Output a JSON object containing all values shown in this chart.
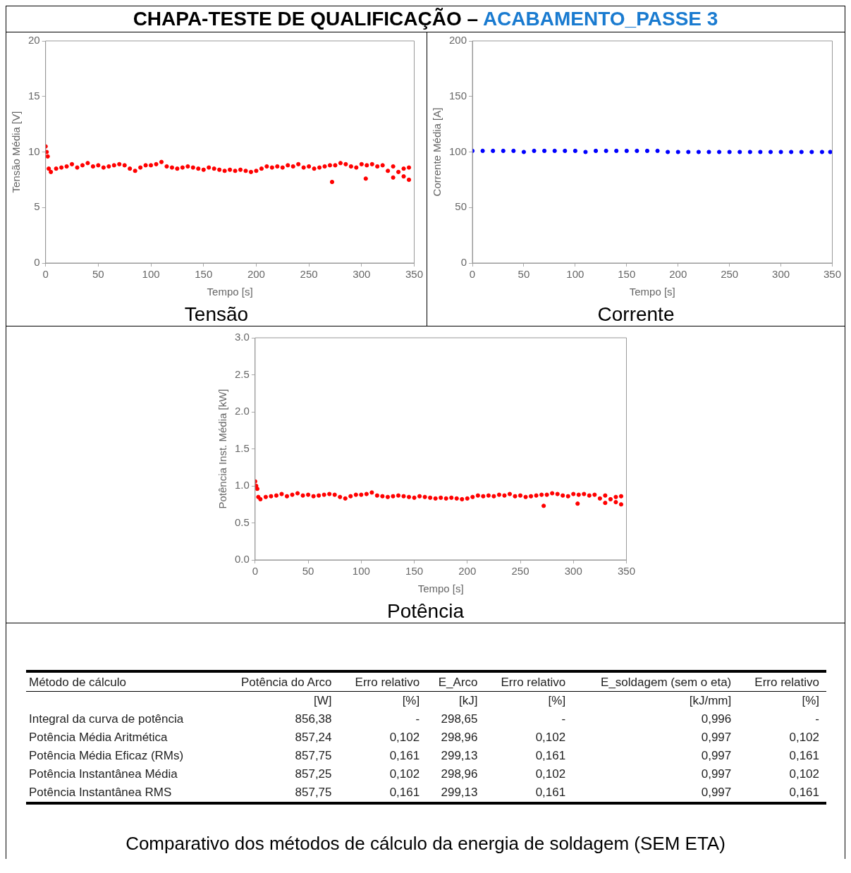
{
  "chart_data": [
    {
      "type": "scatter",
      "title": "Tensão",
      "xlabel": "Tempo [s]",
      "ylabel": "Tensão Média [V]",
      "annotations": [
        "CHAPA-TESTE DE QUALIFICAÇÃO – ",
        "ACABAMENTO_PASSE 3"
      ],
      "marker": "circle",
      "grid": false,
      "legend": false,
      "xlim": [
        0,
        350
      ],
      "xticks": [
        0,
        50,
        100,
        150,
        200,
        250,
        300,
        350
      ],
      "ylim": [
        0,
        20
      ],
      "yticks": [
        0,
        5,
        10,
        15,
        20
      ],
      "series": [
        {
          "color": "#ff0000",
          "x": [
            0,
            1,
            2,
            3,
            5,
            10,
            15,
            20,
            25,
            30,
            35,
            40,
            45,
            50,
            55,
            60,
            65,
            70,
            75,
            80,
            85,
            90,
            95,
            100,
            105,
            110,
            115,
            120,
            125,
            130,
            135,
            140,
            145,
            150,
            155,
            160,
            165,
            170,
            175,
            180,
            185,
            190,
            195,
            200,
            205,
            210,
            215,
            220,
            225,
            230,
            235,
            240,
            245,
            250,
            255,
            260,
            265,
            270,
            275,
            280,
            285,
            290,
            295,
            300,
            305,
            310,
            315,
            320,
            325,
            330,
            335,
            340,
            345,
            272,
            304,
            330,
            340,
            345
          ],
          "values": [
            10.5,
            10.0,
            9.6,
            8.5,
            8.2,
            8.5,
            8.6,
            8.7,
            8.9,
            8.6,
            8.8,
            9.0,
            8.7,
            8.8,
            8.6,
            8.7,
            8.8,
            8.9,
            8.8,
            8.5,
            8.3,
            8.6,
            8.8,
            8.8,
            8.9,
            9.1,
            8.7,
            8.6,
            8.5,
            8.6,
            8.7,
            8.6,
            8.5,
            8.4,
            8.6,
            8.5,
            8.4,
            8.3,
            8.4,
            8.3,
            8.4,
            8.3,
            8.2,
            8.3,
            8.5,
            8.7,
            8.6,
            8.7,
            8.6,
            8.8,
            8.7,
            8.9,
            8.6,
            8.7,
            8.5,
            8.6,
            8.7,
            8.8,
            8.8,
            9.0,
            8.9,
            8.7,
            8.6,
            8.9,
            8.8,
            8.9,
            8.7,
            8.8,
            8.3,
            8.7,
            8.2,
            8.5,
            8.6,
            7.3,
            7.6,
            7.7,
            7.8,
            7.5
          ]
        }
      ]
    },
    {
      "type": "scatter",
      "title": "Corrente",
      "xlabel": "Tempo [s]",
      "ylabel": "Corrente Média [A]",
      "marker": "circle",
      "grid": false,
      "legend": false,
      "xlim": [
        0,
        350
      ],
      "xticks": [
        0,
        50,
        100,
        150,
        200,
        250,
        300,
        350
      ],
      "ylim": [
        0,
        200
      ],
      "yticks": [
        0,
        50,
        100,
        150,
        200
      ],
      "series": [
        {
          "color": "#0000ff",
          "x": [
            0,
            10,
            20,
            30,
            40,
            50,
            60,
            70,
            80,
            90,
            100,
            110,
            120,
            130,
            140,
            150,
            160,
            170,
            180,
            190,
            200,
            210,
            220,
            230,
            240,
            250,
            260,
            270,
            280,
            290,
            300,
            310,
            320,
            330,
            340,
            348
          ],
          "values": [
            101,
            101,
            101,
            101,
            101,
            100,
            101,
            101,
            101,
            101,
            101,
            100,
            101,
            101,
            101,
            101,
            101,
            101,
            101,
            100,
            100,
            100,
            100,
            100,
            100,
            100,
            100,
            100,
            100,
            100,
            100,
            100,
            100,
            100,
            100,
            100
          ]
        }
      ]
    },
    {
      "type": "scatter",
      "title": "Potência",
      "xlabel": "Tempo [s]",
      "ylabel": "Potência Inst. Média [kW]",
      "marker": "circle",
      "grid": false,
      "legend": false,
      "xlim": [
        0,
        350
      ],
      "xticks": [
        0,
        50,
        100,
        150,
        200,
        250,
        300,
        350
      ],
      "ylim": [
        0,
        3
      ],
      "yticks": [
        {
          "value": 0,
          "label": "0.0"
        },
        {
          "value": 0.5,
          "label": "0.5"
        },
        {
          "value": 1,
          "label": "1.0"
        },
        {
          "value": 1.5,
          "label": "1.5"
        },
        {
          "value": 2,
          "label": "2.0"
        },
        {
          "value": 2.5,
          "label": "2.5"
        },
        {
          "value": 3,
          "label": "3.0"
        }
      ],
      "series": [
        {
          "color": "#ff0000",
          "x": [
            0,
            1,
            2,
            3,
            5,
            10,
            15,
            20,
            25,
            30,
            35,
            40,
            45,
            50,
            55,
            60,
            65,
            70,
            75,
            80,
            85,
            90,
            95,
            100,
            105,
            110,
            115,
            120,
            125,
            130,
            135,
            140,
            145,
            150,
            155,
            160,
            165,
            170,
            175,
            180,
            185,
            190,
            195,
            200,
            205,
            210,
            215,
            220,
            225,
            230,
            235,
            240,
            245,
            250,
            255,
            260,
            265,
            270,
            275,
            280,
            285,
            290,
            295,
            300,
            305,
            310,
            315,
            320,
            325,
            330,
            335,
            340,
            345,
            272,
            304,
            330,
            340,
            345
          ],
          "values": [
            1.06,
            1.0,
            0.96,
            0.85,
            0.82,
            0.85,
            0.86,
            0.87,
            0.89,
            0.86,
            0.88,
            0.9,
            0.87,
            0.88,
            0.86,
            0.87,
            0.88,
            0.89,
            0.88,
            0.85,
            0.83,
            0.86,
            0.88,
            0.88,
            0.89,
            0.91,
            0.87,
            0.86,
            0.85,
            0.86,
            0.87,
            0.86,
            0.85,
            0.84,
            0.86,
            0.85,
            0.84,
            0.83,
            0.84,
            0.83,
            0.84,
            0.83,
            0.82,
            0.83,
            0.85,
            0.87,
            0.86,
            0.87,
            0.86,
            0.88,
            0.87,
            0.89,
            0.86,
            0.87,
            0.85,
            0.86,
            0.87,
            0.88,
            0.88,
            0.9,
            0.89,
            0.87,
            0.86,
            0.89,
            0.88,
            0.89,
            0.87,
            0.88,
            0.83,
            0.87,
            0.82,
            0.85,
            0.86,
            0.73,
            0.76,
            0.77,
            0.78,
            0.75
          ]
        }
      ]
    },
    {
      "type": "other",
      "title": "Comparativo dos métodos de cálculo da energia de soldagem (SEM ETA)",
      "categories": [
        "Método de cálculo",
        "Potência do Arco",
        "Erro relativo",
        "E_Arco",
        "Erro relativo",
        "E_soldagem (sem o eta)",
        "Erro relativo"
      ],
      "cell_labels": [
        [
          null,
          "[W]",
          "[%]",
          "[kJ]",
          "[%]",
          "[kJ/mm]",
          "[%]"
        ],
        [
          "Integral da curva de potência",
          "856,38",
          "-",
          "298,65",
          "-",
          "0,996",
          "-"
        ],
        [
          "Potência Média Aritmética",
          "857,24",
          "0,102",
          "298,96",
          "0,102",
          "0,997",
          "0,102"
        ],
        [
          "Potência Média Eficaz (RMs)",
          "857,75",
          "0,161",
          "299,13",
          "0,161",
          "0,997",
          "0,161"
        ],
        [
          "Potência Instantânea Média",
          "857,25",
          "0,102",
          "298,96",
          "0,102",
          "0,997",
          "0,102"
        ],
        [
          "Potência Instantânea RMS",
          "857,75",
          "0,161",
          "299,13",
          "0,161",
          "0,997",
          "0,161"
        ]
      ]
    }
  ]
}
